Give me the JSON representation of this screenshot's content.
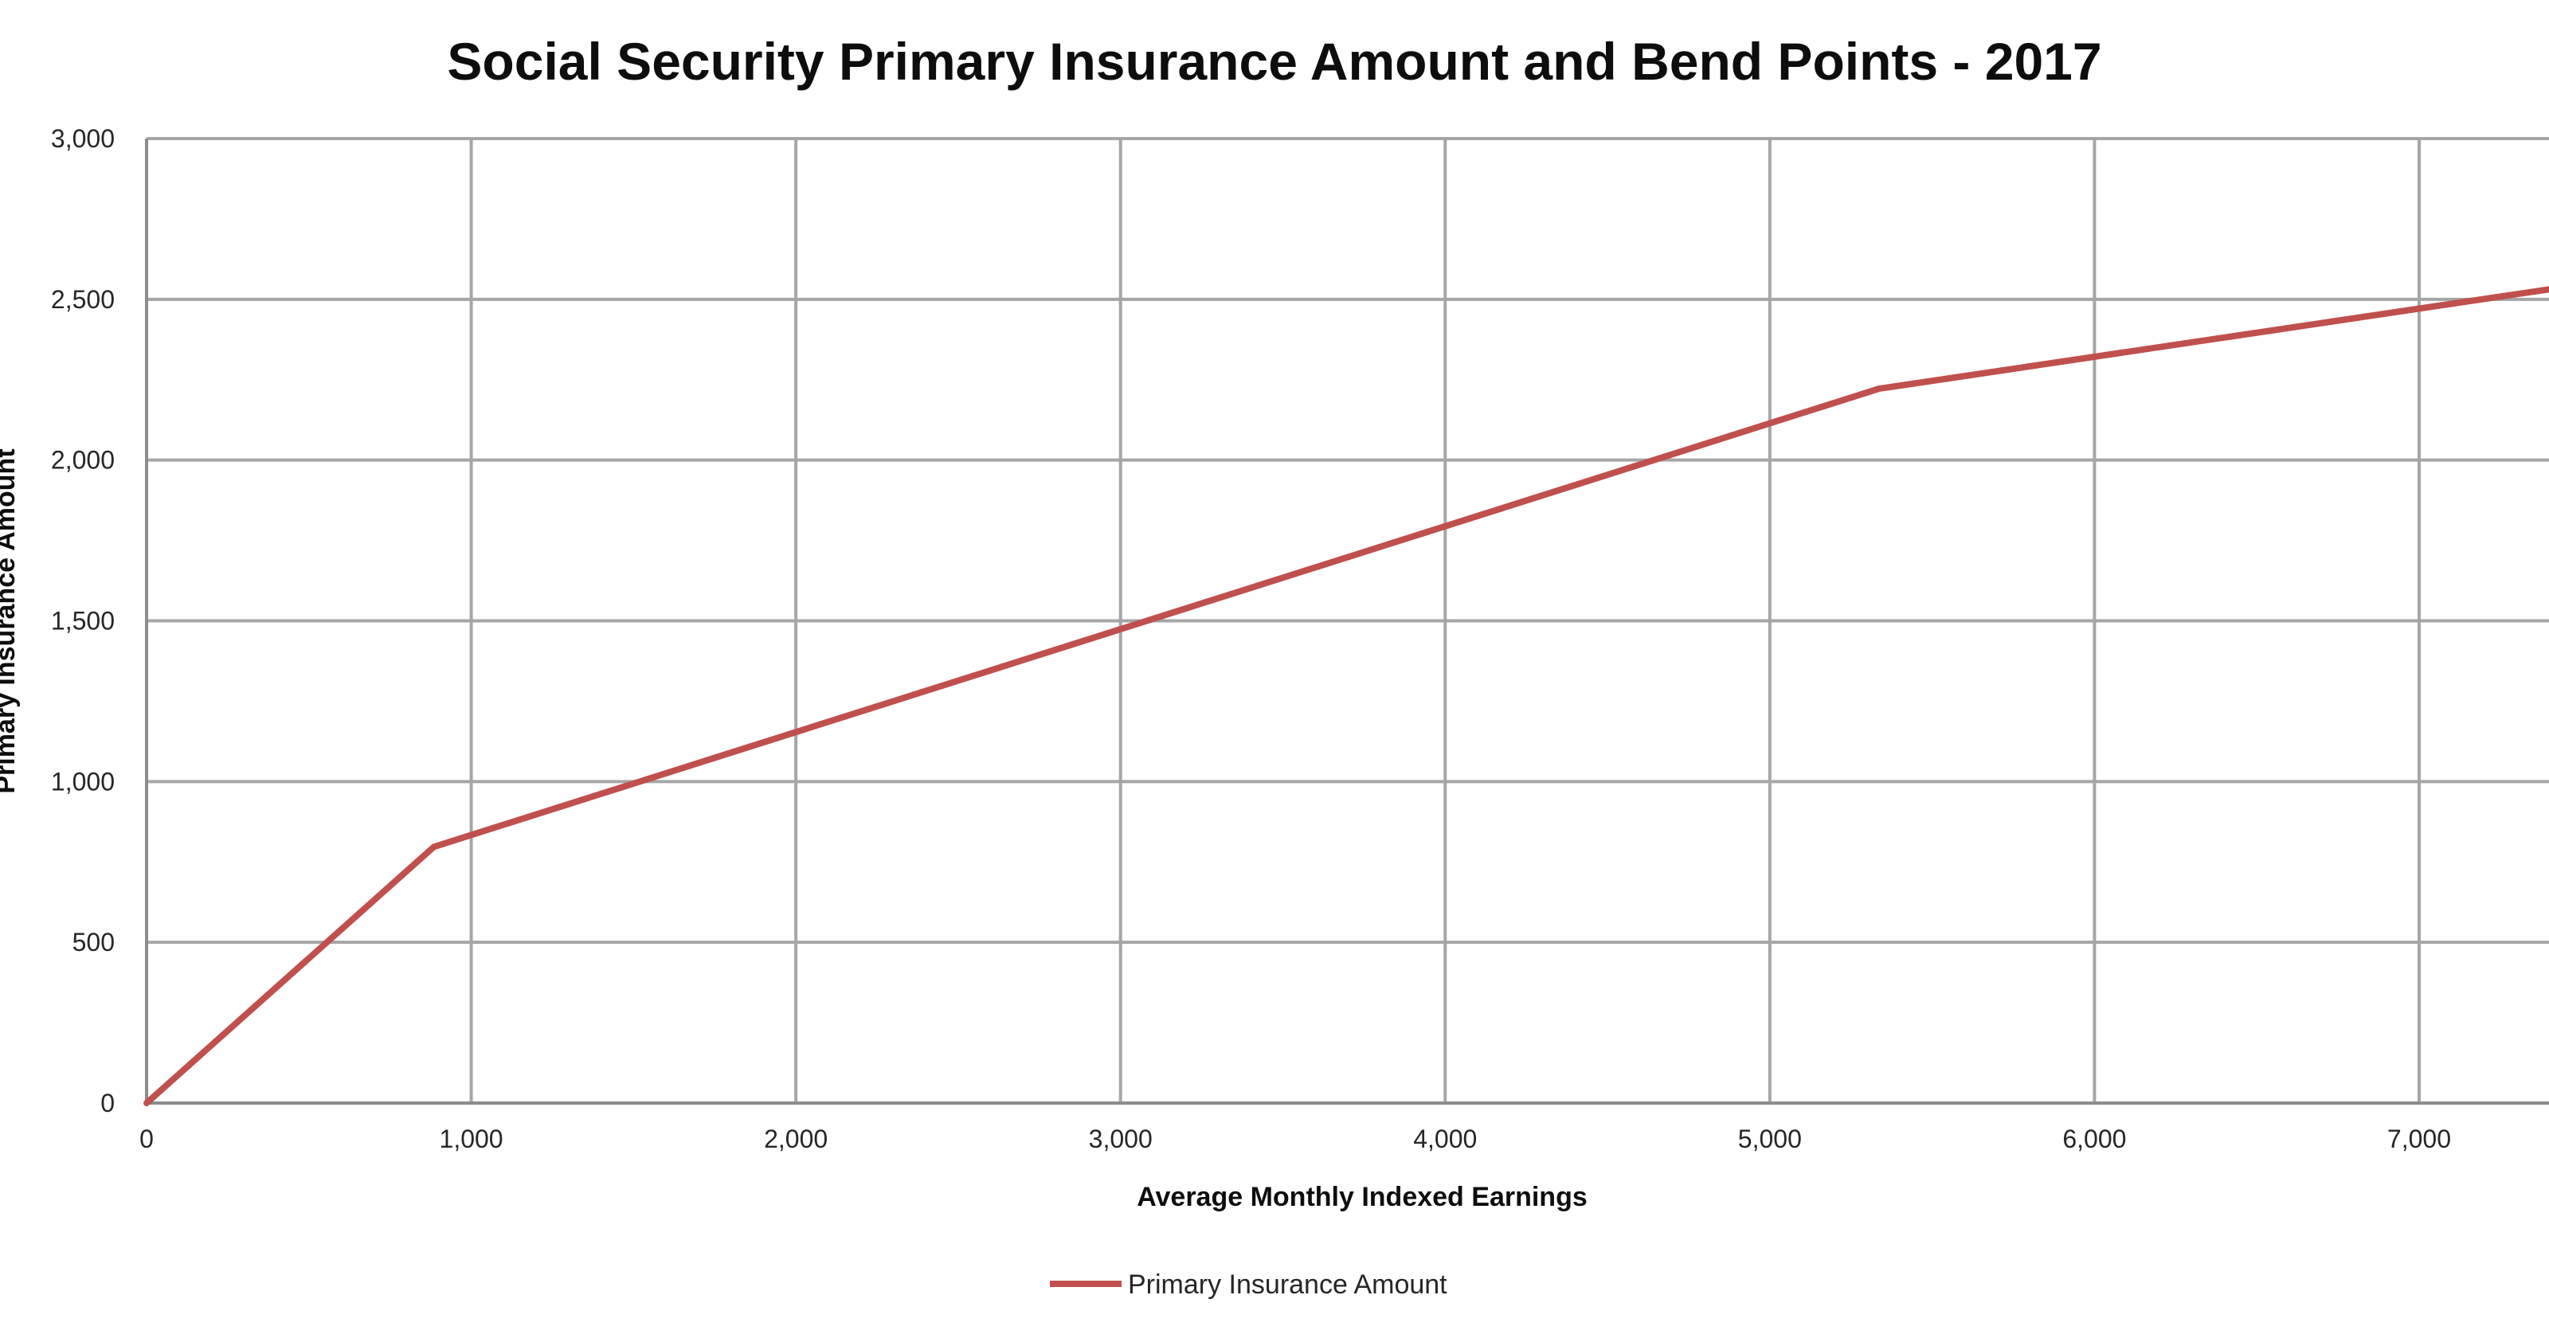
{
  "chart_data": {
    "type": "line",
    "title": "Social Security Primary Insurance Amount and Bend Points - 2017",
    "xlabel": "Average Monthly Indexed Earnings",
    "ylabel": "Primary Insurance Amount",
    "xlim": [
      0,
      7400
    ],
    "ylim": [
      0,
      3000
    ],
    "x_ticks": [
      0,
      1000,
      2000,
      3000,
      4000,
      5000,
      6000,
      7000
    ],
    "x_tick_labels": [
      "0",
      "1,000",
      "2,000",
      "3,000",
      "4,000",
      "5,000",
      "6,000",
      "7,000"
    ],
    "y_ticks": [
      0,
      500,
      1000,
      1500,
      2000,
      2500,
      3000
    ],
    "y_tick_labels": [
      "0",
      "500",
      "1,000",
      "1,500",
      "2,000",
      "2,500",
      "3,000"
    ],
    "grid": true,
    "legend_position": "bottom-center",
    "series": [
      {
        "name": "Primary Insurance Amount",
        "color": "#c0504d",
        "x": [
          0,
          885,
          5336,
          7400
        ],
        "y": [
          0,
          797,
          2222,
          2531
        ]
      }
    ]
  }
}
